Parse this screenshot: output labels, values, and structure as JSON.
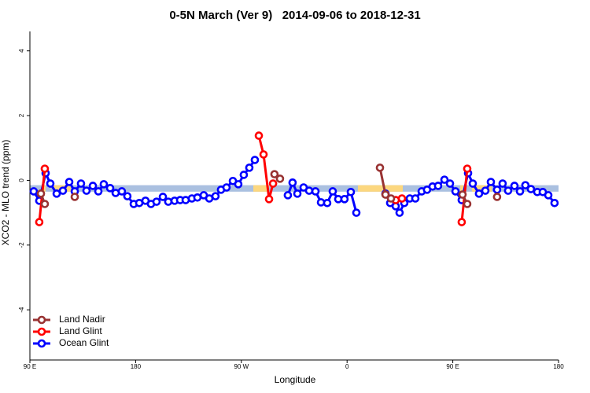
{
  "chart_data": {
    "type": "line",
    "title": "0-5N March (Ver 9)   2014-09-06 to 2018-12-31",
    "x_label": "Longitude",
    "y_label": "XCO2 - MLO trend (ppm)",
    "xlim": [
      90,
      540
    ],
    "ylim": [
      -5.55,
      4.6
    ],
    "xticks": [
      {
        "value": 90,
        "label": "90 E"
      },
      {
        "value": 180,
        "label": "180"
      },
      {
        "value": 270,
        "label": "90 W"
      },
      {
        "value": 360,
        "label": "0"
      },
      {
        "value": 450,
        "label": "90 E"
      },
      {
        "value": 540,
        "label": "180"
      }
    ],
    "yticks": [
      -4,
      -2,
      0,
      2,
      4
    ],
    "legend": "bottom-left",
    "band_ylim": [
      -0.35,
      -0.15
    ],
    "background_bands": [
      {
        "xlim": [
          90,
          540
        ],
        "color": "#aac0e0"
      },
      {
        "xlim": [
          99.4,
          103.4
        ],
        "color": "#fcd77f"
      },
      {
        "xlim": [
          110.1,
          124.8
        ],
        "color": "#fcd77f"
      },
      {
        "xlim": [
          280.2,
          293.6
        ],
        "color": "#fcd77f"
      },
      {
        "xlim": [
          369.2,
          407.4
        ],
        "color": "#fcd77f"
      },
      {
        "xlim": [
          456.3,
          461
        ],
        "color": "#fcd77f"
      },
      {
        "xlim": [
          466.3,
          483.1
        ],
        "color": "#fcd77f"
      }
    ],
    "series": [
      {
        "name": "Land Nadir",
        "color": "#993333",
        "x": [
          99.4,
          102.7,
          null,
          128.2,
          null,
          298.2,
          302.9,
          null,
          388.0,
          392.7,
          397.4,
          null,
          458.3,
          462.3,
          null,
          487.7
        ],
        "values": [
          -0.41,
          -0.73,
          null,
          -0.51,
          null,
          0.19,
          0.05,
          null,
          0.39,
          -0.44,
          -0.56,
          null,
          -0.44,
          -0.73,
          null,
          -0.51
        ]
      },
      {
        "name": "Land Glint",
        "color": "#ff0000",
        "x": [
          98.0,
          102.7,
          null,
          284.9,
          288.9,
          293.6,
          297.0,
          null,
          401.4,
          406.7,
          null,
          457.6,
          462.3
        ],
        "values": [
          -1.29,
          0.36,
          null,
          1.38,
          0.8,
          -0.58,
          -0.1,
          null,
          -0.61,
          -0.56,
          null,
          -1.29,
          0.36
        ]
      },
      {
        "name": "Ocean Glint",
        "color": "#0000ff",
        "x": [
          93.3,
          98.0,
          103.4,
          107.4,
          112.8,
          118.1,
          123.5,
          128.2,
          133.5,
          138.2,
          143.6,
          148.3,
          152.9,
          158.3,
          163.0,
          168.3,
          173.0,
          178.4,
          183.1,
          188.4,
          193.1,
          197.8,
          203.2,
          207.8,
          213.2,
          217.9,
          222.6,
          227.9,
          232.6,
          238.0,
          242.7,
          248.0,
          252.7,
          257.4,
          262.8,
          267.4,
          272.1,
          276.8,
          281.5,
          null,
          309.6,
          313.6,
          317.7,
          323.0,
          327.7,
          333.1,
          337.8,
          343.1,
          347.8,
          352.5,
          357.8,
          363.2,
          367.9,
          null,
          392.7,
          396.7,
          401.4,
          404.7,
          408.7,
          413.4,
          418.1,
          423.5,
          428.1,
          432.8,
          437.5,
          442.9,
          447.6,
          452.3,
          457.6,
          463.0,
          467.0,
          472.3,
          477.7,
          482.4,
          487.7,
          492.4,
          497.1,
          502.5,
          507.2,
          511.8,
          516.5,
          521.9,
          526.6,
          531.3,
          536.6
        ],
        "values": [
          -0.34,
          -0.63,
          0.22,
          -0.1,
          -0.41,
          -0.32,
          -0.05,
          -0.34,
          -0.1,
          -0.32,
          -0.17,
          -0.34,
          -0.12,
          -0.24,
          -0.39,
          -0.34,
          -0.49,
          -0.73,
          -0.7,
          -0.63,
          -0.73,
          -0.66,
          -0.51,
          -0.66,
          -0.63,
          -0.61,
          -0.61,
          -0.56,
          -0.53,
          -0.46,
          -0.56,
          -0.49,
          -0.29,
          -0.22,
          -0.02,
          -0.12,
          0.17,
          0.39,
          0.63,
          null,
          -0.46,
          -0.07,
          -0.41,
          -0.22,
          -0.32,
          -0.34,
          -0.68,
          -0.7,
          -0.34,
          -0.58,
          -0.58,
          -0.36,
          -1.0,
          null,
          -0.41,
          -0.7,
          -0.8,
          -1.0,
          -0.7,
          -0.56,
          -0.56,
          -0.34,
          -0.29,
          -0.19,
          -0.17,
          0.02,
          -0.1,
          -0.34,
          -0.61,
          0.22,
          -0.1,
          -0.41,
          -0.32,
          -0.05,
          -0.29,
          -0.1,
          -0.32,
          -0.17,
          -0.34,
          -0.15,
          -0.27,
          -0.36,
          -0.36,
          -0.46,
          -0.7
        ]
      }
    ]
  }
}
